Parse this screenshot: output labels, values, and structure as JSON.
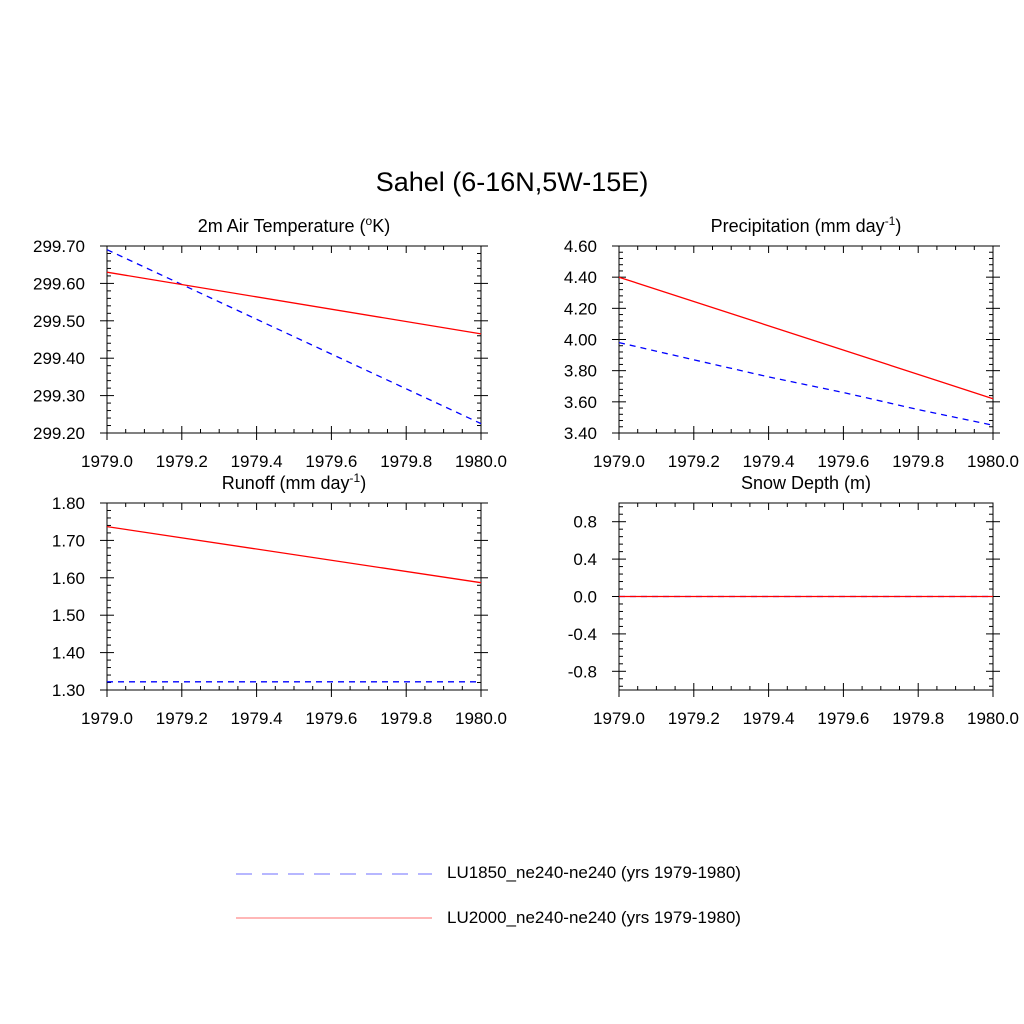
{
  "figure_title": "Sahel (6-16N,5W-15E)",
  "legend": [
    {
      "label": "LU1850_ne240-ne240 (yrs 1979-1980)",
      "color": "#0000ff",
      "dash": "dashed"
    },
    {
      "label": "LU2000_ne240-ne240 (yrs 1979-1980)",
      "color": "#ff0000",
      "dash": "solid"
    }
  ],
  "chart_data": [
    {
      "type": "line",
      "title": "2m Air Temperature (",
      "title_parts": [
        "2m Air Temperature (",
        "o",
        "K)"
      ],
      "title_style": "sup",
      "xlim": [
        1979.0,
        1980.0
      ],
      "ylim": [
        299.2,
        299.7
      ],
      "xticks": [
        "1979.0",
        "1979.2",
        "1979.4",
        "1979.6",
        "1979.8",
        "1980.0"
      ],
      "yticks": [
        "299.20",
        "299.30",
        "299.40",
        "299.50",
        "299.60",
        "299.70"
      ],
      "series": [
        {
          "name": "LU1850_ne240-ne240 (yrs 1979-1980)",
          "color": "#0000ff",
          "dash": "dashed",
          "x": [
            1979.0,
            1980.0
          ],
          "y": [
            299.69,
            299.225
          ]
        },
        {
          "name": "LU2000_ne240-ne240 (yrs 1979-1980)",
          "color": "#ff0000",
          "dash": "solid",
          "x": [
            1979.0,
            1980.0
          ],
          "y": [
            299.63,
            299.465
          ]
        }
      ]
    },
    {
      "type": "line",
      "title": "Precipitation (mm day",
      "title_parts": [
        "Precipitation (mm day",
        "-1",
        ")"
      ],
      "title_style": "sup",
      "xlim": [
        1979.0,
        1980.0
      ],
      "ylim": [
        3.4,
        4.6
      ],
      "xticks": [
        "1979.0",
        "1979.2",
        "1979.4",
        "1979.6",
        "1979.8",
        "1980.0"
      ],
      "yticks": [
        "3.40",
        "3.60",
        "3.80",
        "4.00",
        "4.20",
        "4.40",
        "4.60"
      ],
      "series": [
        {
          "name": "LU1850_ne240-ne240 (yrs 1979-1980)",
          "color": "#0000ff",
          "dash": "dashed",
          "x": [
            1979.0,
            1979.2,
            1979.4,
            1979.6,
            1979.8,
            1980.0
          ],
          "y": [
            3.98,
            3.87,
            3.76,
            3.66,
            3.55,
            3.45
          ]
        },
        {
          "name": "LU2000_ne240-ne240 (yrs 1979-1980)",
          "color": "#ff0000",
          "dash": "solid",
          "x": [
            1979.0,
            1980.0
          ],
          "y": [
            4.4,
            3.62
          ]
        }
      ]
    },
    {
      "type": "line",
      "title": "Runoff (mm day",
      "title_parts": [
        "Runoff (mm day",
        "-1",
        ")"
      ],
      "title_style": "sup",
      "xlim": [
        1979.0,
        1980.0
      ],
      "ylim": [
        1.3,
        1.8
      ],
      "xticks": [
        "1979.0",
        "1979.2",
        "1979.4",
        "1979.6",
        "1979.8",
        "1980.0"
      ],
      "yticks": [
        "1.30",
        "1.40",
        "1.50",
        "1.60",
        "1.70",
        "1.80"
      ],
      "series": [
        {
          "name": "LU1850_ne240-ne240 (yrs 1979-1980)",
          "color": "#0000ff",
          "dash": "dashed",
          "x": [
            1979.0,
            1980.0
          ],
          "y": [
            1.322,
            1.322
          ]
        },
        {
          "name": "LU2000_ne240-ne240 (yrs 1979-1980)",
          "color": "#ff0000",
          "dash": "solid",
          "x": [
            1979.0,
            1980.0
          ],
          "y": [
            1.737,
            1.587
          ]
        }
      ]
    },
    {
      "type": "line",
      "title": "Snow Depth (m)",
      "title_parts": [
        "Snow Depth (m)",
        "",
        ""
      ],
      "title_style": "sup",
      "xlim": [
        1979.0,
        1980.0
      ],
      "ylim": [
        -1.0,
        1.0
      ],
      "xticks": [
        "1979.0",
        "1979.2",
        "1979.4",
        "1979.6",
        "1979.8",
        "1980.0"
      ],
      "yticks": [
        "-0.8",
        "-0.4",
        "0.0",
        "0.4",
        "0.8"
      ],
      "yticks_values": [
        -0.8,
        -0.4,
        0.0,
        0.4,
        0.8
      ],
      "series": [
        {
          "name": "LU1850_ne240-ne240 (yrs 1979-1980)",
          "color": "#0000ff",
          "dash": "dashed",
          "x": [
            1979.0,
            1980.0
          ],
          "y": [
            0.0,
            0.0
          ]
        },
        {
          "name": "LU2000_ne240-ne240 (yrs 1979-1980)",
          "color": "#ff0000",
          "dash": "solid",
          "x": [
            1979.0,
            1980.0
          ],
          "y": [
            0.0,
            0.0
          ]
        }
      ]
    }
  ]
}
